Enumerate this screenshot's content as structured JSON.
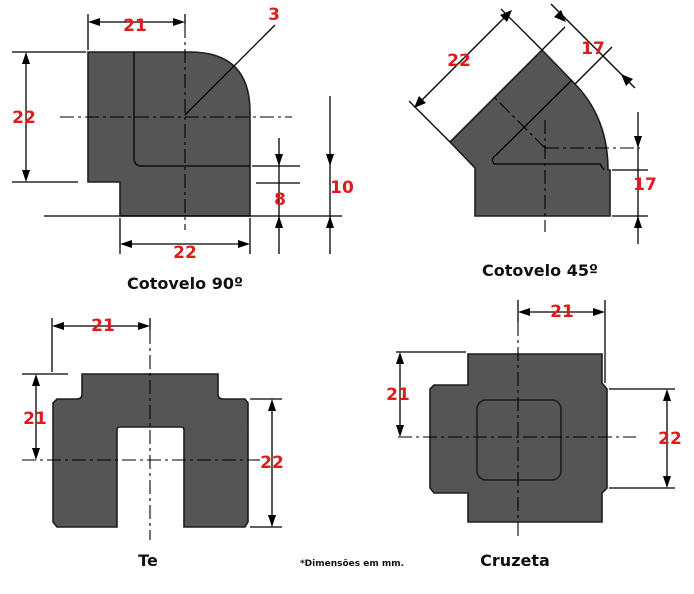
{
  "elbow90": {
    "caption": "Cotovelo 90º",
    "dims": {
      "top_width": "21",
      "height": "22",
      "wall": "3",
      "right_offset": "10",
      "bottom_step": "8",
      "bottom_width": "22"
    }
  },
  "elbow45": {
    "caption": "Cotovelo 45º",
    "dims": {
      "diag_length": "22",
      "diag_width": "17",
      "right_height": "17"
    }
  },
  "tee": {
    "caption": "Te",
    "dims": {
      "top_width": "21",
      "left_height": "21",
      "right_height": "22"
    }
  },
  "cross": {
    "caption": "Cruzeta",
    "dims": {
      "top_width": "21",
      "left_height": "21",
      "right_height": "22"
    }
  },
  "footnote": "*Dimensões em mm."
}
